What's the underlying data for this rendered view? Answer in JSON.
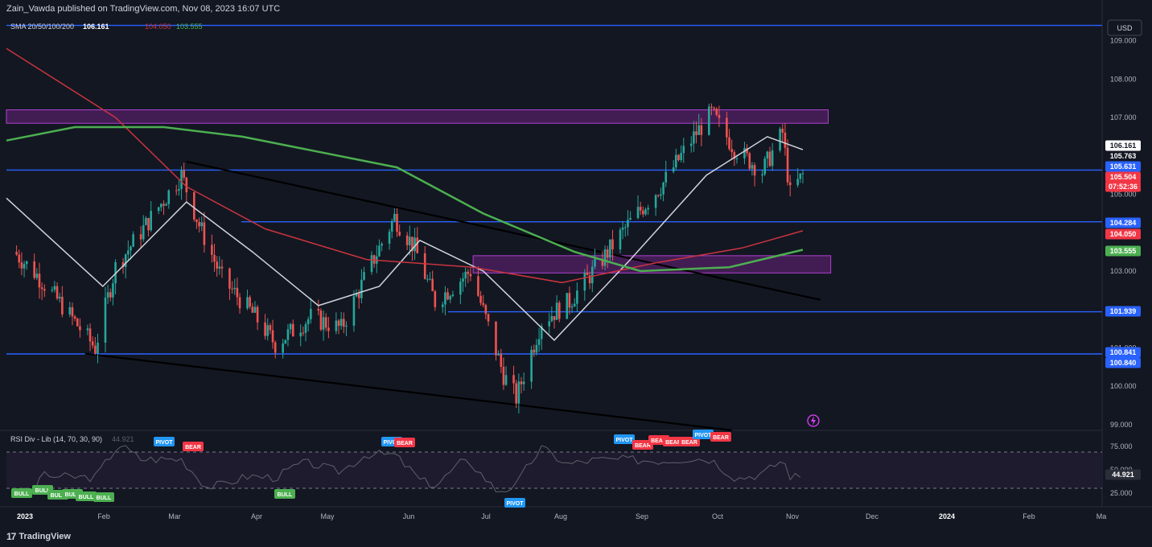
{
  "header": {
    "publisher": "Zain_Vawda published on TradingView.com, Nov 08, 2023 16:07 UTC"
  },
  "footer": {
    "brand": "TradingView",
    "logo_text": "17"
  },
  "legend": {
    "sma_label": "SMA 20/50/100/200",
    "sma_values": [
      "106.161",
      "104.050",
      "103.555"
    ],
    "rsi_label": "RSI Div - Lib (14, 70, 30, 90)",
    "rsi_value": "44.921"
  },
  "price_axis": {
    "currency": "USD",
    "ticks": [
      "109.000",
      "108.000",
      "107.000",
      "105.000",
      "103.000",
      "101.000",
      "100.000",
      "99.000"
    ],
    "rsi_ticks": [
      "75.000",
      "50.000",
      "25.000"
    ]
  },
  "price_labels": [
    {
      "text": "106.161",
      "bg": "#ffffff",
      "fg": "#131722"
    },
    {
      "text": "105.763",
      "bg": "#131722",
      "fg": "#ffffff"
    },
    {
      "text": "105.631",
      "bg": "#2962ff",
      "fg": "#ffffff"
    },
    {
      "text": "105.504",
      "bg": "#f23645",
      "fg": "#ffffff"
    },
    {
      "text": "07:52:36",
      "bg": "#f23645",
      "fg": "#ffffff"
    },
    {
      "text": "104.284",
      "bg": "#2962ff",
      "fg": "#ffffff"
    },
    {
      "text": "104.050",
      "bg": "#f23645",
      "fg": "#ffffff"
    },
    {
      "text": "103.555",
      "bg": "#4caf50",
      "fg": "#ffffff"
    },
    {
      "text": "101.939",
      "bg": "#2962ff",
      "fg": "#ffffff"
    },
    {
      "text": "100.841",
      "bg": "#2962ff",
      "fg": "#ffffff"
    },
    {
      "text": "100.840",
      "bg": "#2962ff",
      "fg": "#ffffff"
    },
    {
      "text": "44.921",
      "bg": "#2a2e39",
      "fg": "#ffffff"
    }
  ],
  "time_axis": [
    "2023",
    "Feb",
    "Mar",
    "Apr",
    "May",
    "Jun",
    "Jul",
    "Aug",
    "Sep",
    "Oct",
    "Nov",
    "Dec",
    "2024",
    "Feb",
    "Ma"
  ],
  "signal_labels": [
    {
      "text": "PIVOT",
      "kind": "pivot"
    },
    {
      "text": "BEAR",
      "kind": "bear"
    },
    {
      "text": "PIVOT",
      "kind": "pivot"
    },
    {
      "text": "BEAR",
      "kind": "bear"
    },
    {
      "text": "PIVOT",
      "kind": "pivot"
    },
    {
      "text": "BEAR",
      "kind": "bear"
    },
    {
      "text": "BEAR",
      "kind": "bear"
    },
    {
      "text": "BEAR",
      "kind": "bear"
    },
    {
      "text": "BEAR",
      "kind": "bear"
    },
    {
      "text": "PIVOT",
      "kind": "pivot"
    },
    {
      "text": "BEAR",
      "kind": "bear"
    },
    {
      "text": "BULL",
      "kind": "bull"
    },
    {
      "text": "BULL",
      "kind": "bull"
    },
    {
      "text": "BULL",
      "kind": "bull"
    },
    {
      "text": "BULL",
      "kind": "bull"
    },
    {
      "text": "BULL",
      "kind": "bull"
    },
    {
      "text": "BULL",
      "kind": "bull"
    },
    {
      "text": "BULL",
      "kind": "bull"
    },
    {
      "text": "PIVOT",
      "kind": "pivot"
    }
  ],
  "colors": {
    "background": "#131722",
    "up": "#26a69a",
    "down": "#ef5350",
    "sma20": "#d1d4dc",
    "sma100": "#c9343f",
    "sma200": "#4caf50",
    "hline": "#2962ff",
    "zone": "#9c27b0",
    "trendline": "#000000",
    "pivot": "#2196f3",
    "bear": "#f23645",
    "bull": "#4caf50"
  },
  "chart_data": {
    "type": "candlestick",
    "symbol_currency": "USD",
    "x_range": [
      "2022-12-29",
      "2024-03-05"
    ],
    "y_range": [
      98.85,
      109.6
    ],
    "last_date": "2023-11-08",
    "horizontal_levels": [
      105.631,
      104.284,
      101.939,
      100.841,
      109.4
    ],
    "zones": [
      {
        "from": "2022-12-29",
        "to": "2023-11-18",
        "low": 106.85,
        "high": 107.2
      },
      {
        "from": "2023-07-01",
        "to": "2023-11-19",
        "low": 102.95,
        "high": 103.4
      }
    ],
    "trendlines": [
      {
        "from": [
          "2023-03-10",
          105.85
        ],
        "to": [
          "2023-11-15",
          102.25
        ]
      },
      {
        "from": [
          "2023-01-29",
          100.85
        ],
        "to": [
          "2023-10-11",
          98.85
        ]
      }
    ],
    "candles_monthly_path": [
      {
        "date": "2023-01-01",
        "close": 103.5
      },
      {
        "date": "2023-01-10",
        "close": 102.9
      },
      {
        "date": "2023-01-20",
        "close": 102.1
      },
      {
        "date": "2023-02-02",
        "close": 101.0
      },
      {
        "date": "2023-02-10",
        "close": 103.1
      },
      {
        "date": "2023-02-22",
        "close": 104.2
      },
      {
        "date": "2023-03-08",
        "close": 105.5
      },
      {
        "date": "2023-03-15",
        "close": 104.2
      },
      {
        "date": "2023-03-24",
        "close": 102.8
      },
      {
        "date": "2023-04-05",
        "close": 101.9
      },
      {
        "date": "2023-04-14",
        "close": 101.1
      },
      {
        "date": "2023-04-28",
        "close": 101.8
      },
      {
        "date": "2023-05-10",
        "close": 101.5
      },
      {
        "date": "2023-05-22",
        "close": 103.2
      },
      {
        "date": "2023-05-31",
        "close": 104.4
      },
      {
        "date": "2023-06-08",
        "close": 103.6
      },
      {
        "date": "2023-06-16",
        "close": 102.2
      },
      {
        "date": "2023-06-30",
        "close": 103.0
      },
      {
        "date": "2023-07-13",
        "close": 100.3
      },
      {
        "date": "2023-07-18",
        "close": 99.7
      },
      {
        "date": "2023-07-28",
        "close": 101.7
      },
      {
        "date": "2023-08-08",
        "close": 102.2
      },
      {
        "date": "2023-08-22",
        "close": 103.4
      },
      {
        "date": "2023-08-31",
        "close": 104.2
      },
      {
        "date": "2023-09-14",
        "close": 105.3
      },
      {
        "date": "2023-09-27",
        "close": 106.6
      },
      {
        "date": "2023-10-03",
        "close": 107.1
      },
      {
        "date": "2023-10-12",
        "close": 106.2
      },
      {
        "date": "2023-10-23",
        "close": 105.6
      },
      {
        "date": "2023-10-31",
        "close": 106.6
      },
      {
        "date": "2023-11-03",
        "close": 105.0
      },
      {
        "date": "2023-11-08",
        "close": 105.504
      }
    ],
    "sma": [
      {
        "name": "SMA 20",
        "points": [
          [
            "2022-12-29",
            104.9
          ],
          [
            "2023-02-05",
            102.6
          ],
          [
            "2023-03-10",
            104.8
          ],
          [
            "2023-04-05",
            103.5
          ],
          [
            "2023-05-01",
            102.1
          ],
          [
            "2023-05-25",
            102.6
          ],
          [
            "2023-06-10",
            103.8
          ],
          [
            "2023-07-05",
            103.0
          ],
          [
            "2023-08-02",
            101.2
          ],
          [
            "2023-09-01",
            103.3
          ],
          [
            "2023-10-01",
            105.5
          ],
          [
            "2023-10-25",
            106.5
          ],
          [
            "2023-11-08",
            106.161
          ]
        ]
      },
      {
        "name": "SMA 100",
        "points": [
          [
            "2022-12-29",
            108.8
          ],
          [
            "2023-02-10",
            107.0
          ],
          [
            "2023-03-10",
            105.2
          ],
          [
            "2023-04-10",
            104.1
          ],
          [
            "2023-05-20",
            103.3
          ],
          [
            "2023-07-01",
            103.1
          ],
          [
            "2023-08-05",
            102.7
          ],
          [
            "2023-09-10",
            103.2
          ],
          [
            "2023-10-15",
            103.6
          ],
          [
            "2023-11-08",
            104.05
          ]
        ]
      },
      {
        "name": "SMA 200",
        "points": [
          [
            "2022-12-29",
            106.4
          ],
          [
            "2023-01-25",
            106.75
          ],
          [
            "2023-03-01",
            106.75
          ],
          [
            "2023-04-01",
            106.5
          ],
          [
            "2023-06-01",
            105.7
          ],
          [
            "2023-07-05",
            104.5
          ],
          [
            "2023-08-10",
            103.5
          ],
          [
            "2023-09-05",
            103.0
          ],
          [
            "2023-10-10",
            103.1
          ],
          [
            "2023-11-08",
            103.555
          ]
        ]
      }
    ],
    "rsi": {
      "value": 44.921,
      "overbought": 70,
      "oversold": 30,
      "y_range": [
        20,
        80
      ]
    }
  }
}
